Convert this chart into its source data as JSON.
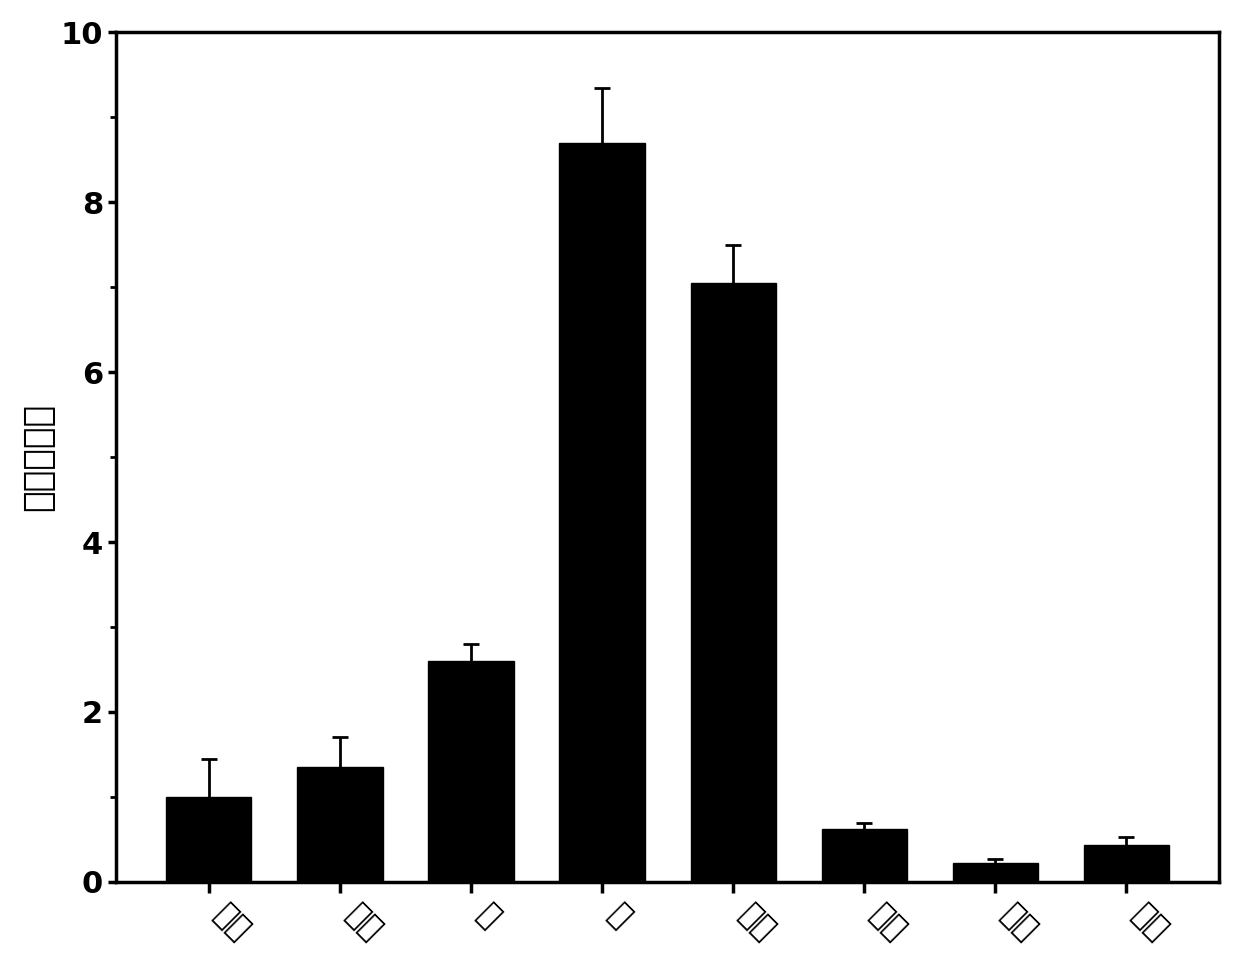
{
  "x_labels": [
    "主根",
    "须根",
    "茎",
    "叶",
    "叶柄",
    "花辜",
    "花丝",
    "花萝"
  ],
  "values": [
    1.0,
    1.35,
    2.6,
    8.7,
    7.05,
    0.62,
    0.22,
    0.43
  ],
  "errors": [
    0.45,
    0.35,
    0.2,
    0.65,
    0.45,
    0.07,
    0.05,
    0.1
  ],
  "bar_color": "#000000",
  "error_color": "#000000",
  "ylabel": "相对表达量",
  "ylim": [
    0,
    10
  ],
  "yticks": [
    0,
    2,
    4,
    6,
    8,
    10
  ],
  "background_color": "#ffffff",
  "bar_width": 0.65,
  "ylabel_fontsize": 26,
  "tick_fontsize": 22,
  "xlabel_fontsize": 22,
  "spine_linewidth": 2.5,
  "capsize": 6,
  "elinewidth": 2,
  "capthick": 2
}
